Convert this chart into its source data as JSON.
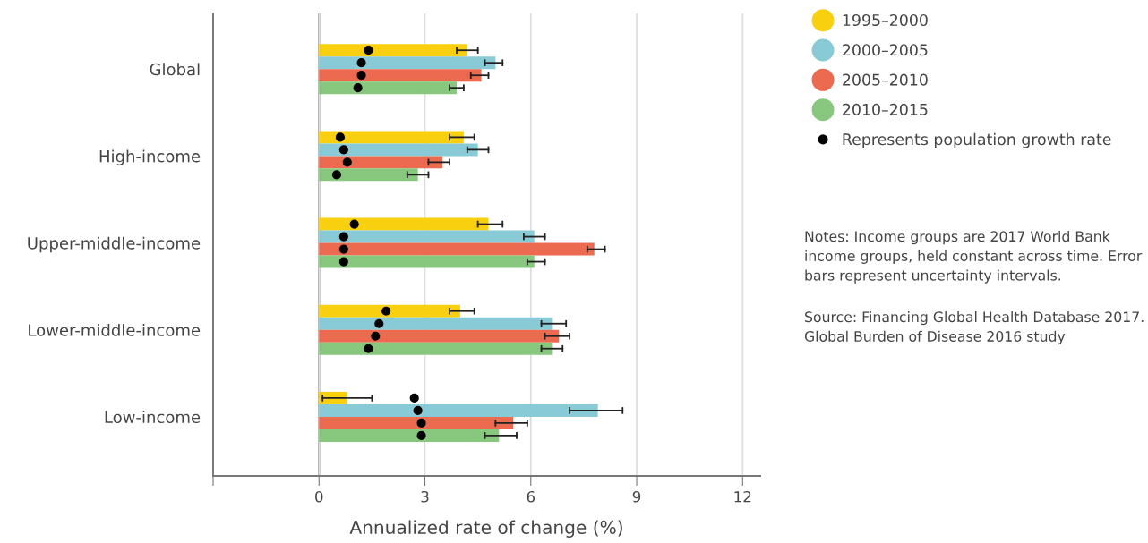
{
  "chart_data": {
    "type": "bar",
    "orientation": "horizontal",
    "xlabel": "Annualized rate of change (%)",
    "categories": [
      "Global",
      "High-income",
      "Upper-middle-income",
      "Lower-middle-income",
      "Low-income"
    ],
    "xlim": [
      -3,
      12.5
    ],
    "xticks": [
      {
        "value": -3,
        "label": null
      },
      0,
      3,
      6,
      9,
      12
    ],
    "grid": "x",
    "legend": "top right",
    "ref_lines": [
      {
        "axis": "x",
        "value": 0,
        "color": "#777777"
      }
    ],
    "series": [
      {
        "name": "1995–2000",
        "color": "#f9d00f",
        "values": [
          4.2,
          4.1,
          4.8,
          4.0,
          0.8
        ],
        "errors": [
          [
            3.9,
            4.5
          ],
          [
            3.7,
            4.4
          ],
          [
            4.5,
            5.2
          ],
          [
            3.7,
            4.4
          ],
          [
            0.1,
            1.5
          ]
        ]
      },
      {
        "name": "2000–2005",
        "color": "#88cad6",
        "values": [
          5.0,
          4.5,
          6.1,
          6.6,
          7.9
        ],
        "errors": [
          [
            4.7,
            5.2
          ],
          [
            4.2,
            4.8
          ],
          [
            5.8,
            6.4
          ],
          [
            6.3,
            7.0
          ],
          [
            7.1,
            8.6
          ]
        ]
      },
      {
        "name": "2005–2010",
        "color": "#ec6a4f",
        "values": [
          4.6,
          3.5,
          7.8,
          6.8,
          5.5
        ],
        "errors": [
          [
            4.3,
            4.8
          ],
          [
            3.1,
            3.7
          ],
          [
            7.6,
            8.1
          ],
          [
            6.4,
            7.1
          ],
          [
            5.0,
            5.9
          ]
        ]
      },
      {
        "name": "2010–2015",
        "color": "#88c87e",
        "values": [
          3.9,
          2.8,
          6.1,
          6.6,
          5.1
        ],
        "errors": [
          [
            3.7,
            4.1
          ],
          [
            2.5,
            3.1
          ],
          [
            5.9,
            6.4
          ],
          [
            6.3,
            6.9
          ],
          [
            4.7,
            5.6
          ]
        ]
      },
      {
        "type": "scatter",
        "name": "Represents population growth rate",
        "color": "#000000",
        "values": [
          1.4,
          0.6,
          1.0,
          1.9,
          2.7
        ]
      },
      {
        "type": "scatter",
        "color": "#000000",
        "values": [
          1.2,
          0.7,
          0.7,
          1.7,
          2.8
        ]
      },
      {
        "type": "scatter",
        "color": "#000000",
        "values": [
          1.2,
          0.8,
          0.7,
          1.6,
          2.9
        ]
      },
      {
        "type": "scatter",
        "color": "#000000",
        "values": [
          1.1,
          0.5,
          0.7,
          1.4,
          2.9
        ]
      }
    ],
    "annotations": [
      "Notes: Income groups are 2017 World Bank income groups, held constant across time. Error bars represent uncertainty intervals.",
      "Source: Financing Global Health Database 2017. Global Burden of Disease 2016 study"
    ]
  }
}
